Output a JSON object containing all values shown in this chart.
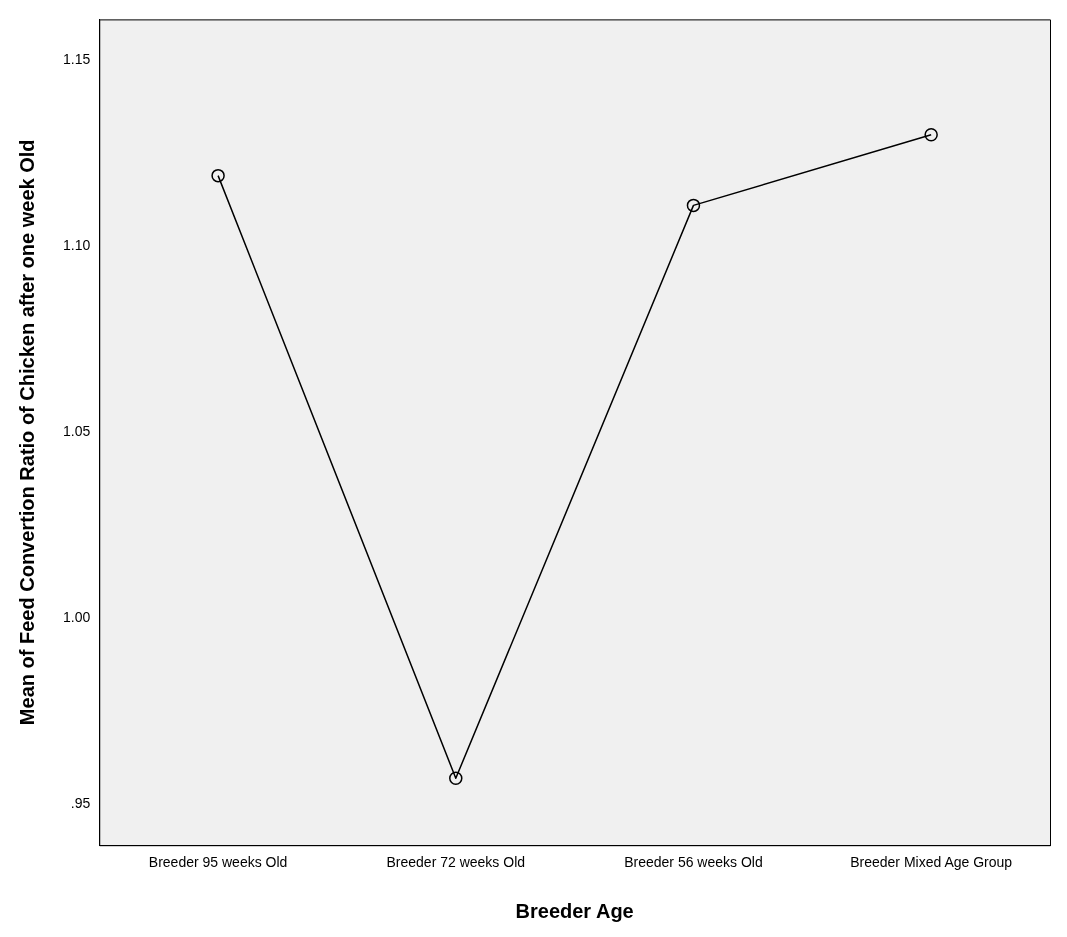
{
  "chart_data": {
    "type": "line",
    "xlabel": "Breeder Age",
    "ylabel": "Mean of Feed Convertion Ratio of Chicken after one week Old",
    "categories": [
      "Breeder 95 weeks Old",
      "Breeder 72 weeks Old",
      "Breeder 56 weeks Old",
      "Breeder Mixed Age Group"
    ],
    "series": [
      {
        "color": "#000000",
        "values": [
          1.119,
          0.957,
          1.111,
          1.13
        ]
      }
    ],
    "ylim": [
      0.939,
      1.161
    ],
    "yticks": [
      {
        "value": 0.95,
        "label": ".95"
      },
      {
        "value": 1.0,
        "label": "1.00"
      },
      {
        "value": 1.05,
        "label": "1.05"
      },
      {
        "value": 1.1,
        "label": "1.10"
      },
      {
        "value": 1.15,
        "label": "1.15"
      }
    ],
    "marker": "circle",
    "line_style": "solid",
    "grid": false,
    "legend": false
  }
}
